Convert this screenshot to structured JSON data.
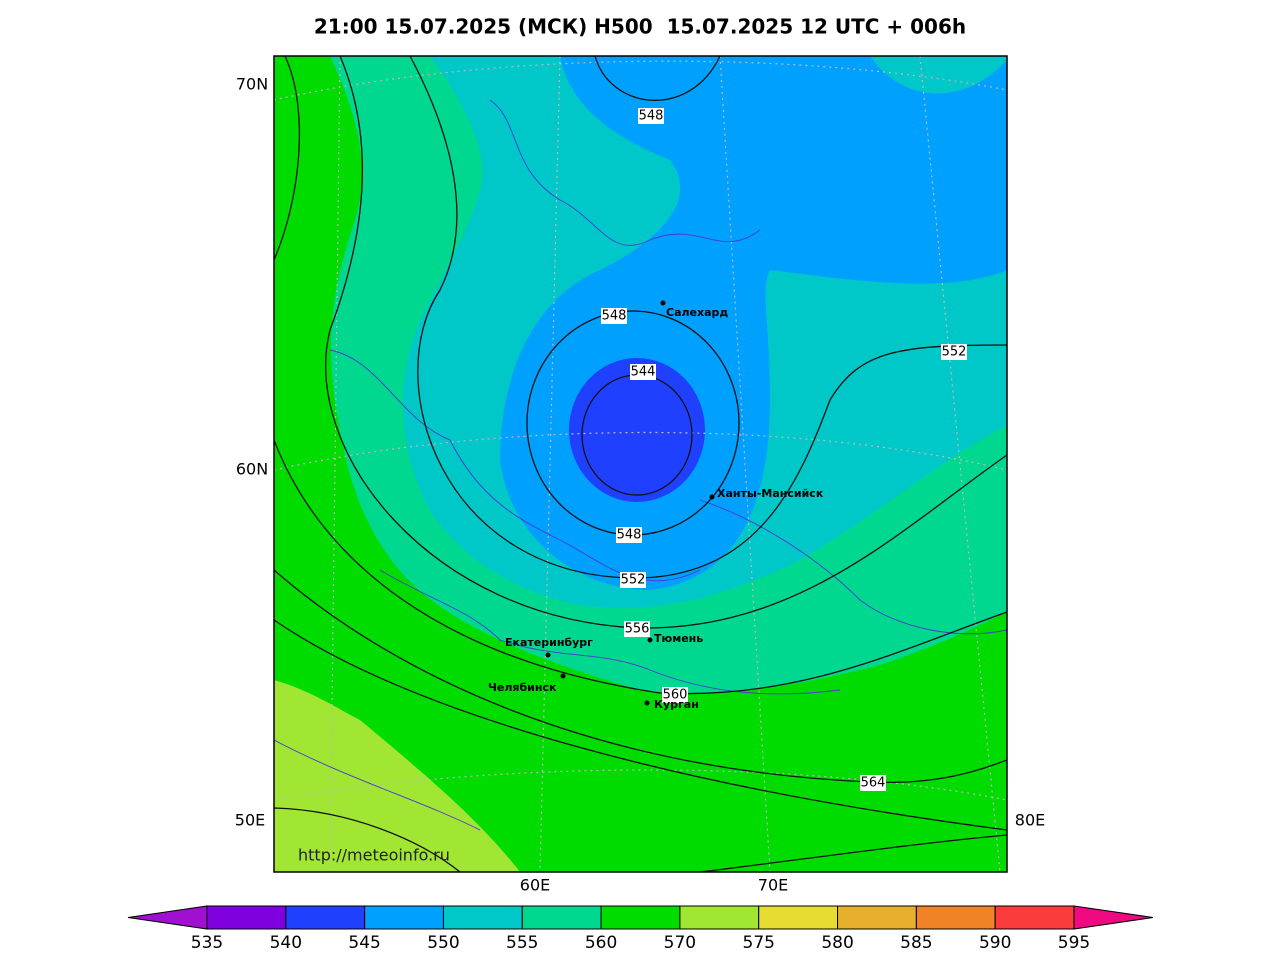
{
  "header": {
    "title": "21:00 15.07.2025 (МСК) H500  15.07.2025 12 UTC + 006h"
  },
  "axes": {
    "lat_labels": [
      "70N",
      "60N"
    ],
    "lon_labels_side": [
      "50E",
      "80E"
    ],
    "lon_labels_bottom": [
      "60E",
      "70E"
    ]
  },
  "contour_labels": [
    548,
    548,
    544,
    552,
    548,
    552,
    556,
    560,
    564
  ],
  "cities": [
    "Салехард",
    "Ханты-Мансийск",
    "Екатеринбург",
    "Тюмень",
    "Челябинск",
    "Курган"
  ],
  "url": "http://meteoinfo.ru",
  "colorbar": {
    "ticks": [
      535,
      540,
      545,
      550,
      555,
      560,
      570,
      575,
      580,
      585,
      590,
      595
    ],
    "colors": [
      "#a010d0",
      "#8000e0",
      "#2040ff",
      "#00a0ff",
      "#00c8c8",
      "#00d890",
      "#00dc00",
      "#a0e632",
      "#e6dc32",
      "#e6af2d",
      "#f08228",
      "#fa3c3c",
      "#f00a82"
    ]
  }
}
